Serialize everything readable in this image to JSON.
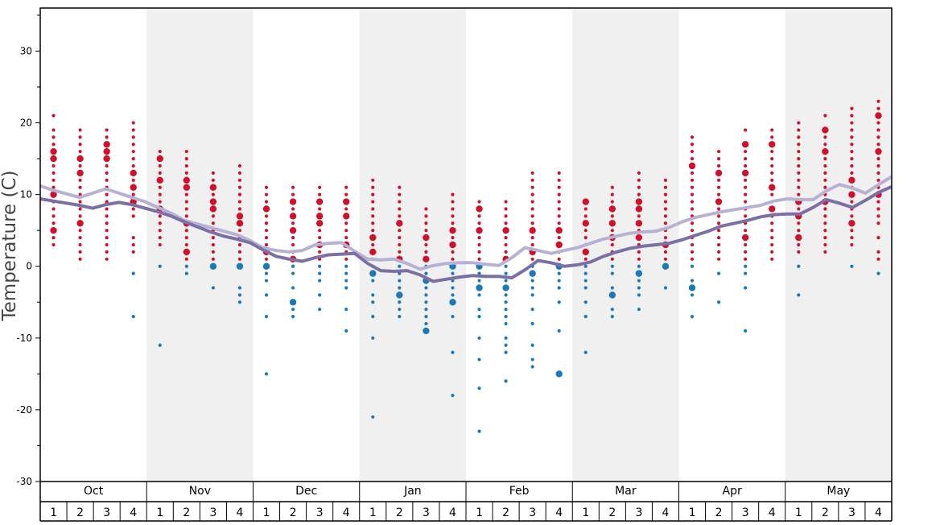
{
  "chart_data": {
    "type": "scatter",
    "ylabel": "Temperature (C)",
    "ylim": [
      -30,
      36
    ],
    "y_ticks": [
      -30,
      -20,
      -10,
      0,
      10,
      20,
      30
    ],
    "months": [
      "Oct",
      "Nov",
      "Dec",
      "Jan",
      "Feb",
      "Mar",
      "Apr",
      "May"
    ],
    "week_labels": [
      "1",
      "2",
      "3",
      "4"
    ],
    "colors": {
      "warm_dot": "#d0112b",
      "cold_dot": "#1a7ab8",
      "max_line": "#b7b1d3",
      "min_line": "#7d6fa5",
      "shaded_band": "#f0f0f0",
      "axis": "#000000"
    },
    "series": [
      {
        "name": "upper",
        "values": [
          11.2,
          10.6,
          10.1,
          9.6,
          10.2,
          10.8,
          10.2,
          9.6,
          9.0,
          8.2,
          7.4,
          6.4,
          5.9,
          5.4,
          4.9,
          4.4,
          3.6,
          2.6,
          2.2,
          2.0,
          2.2,
          3.0,
          3.2,
          3.3,
          2.1,
          1.0,
          0.9,
          1.0,
          0.4,
          -0.4,
          0.1,
          0.4,
          0.5,
          0.5,
          0.3,
          0.1,
          1.2,
          2.6,
          2.2,
          1.8,
          2.2,
          2.6,
          3.2,
          3.8,
          4.2,
          4.6,
          4.8,
          4.9,
          5.4,
          6.2,
          6.8,
          7.2,
          7.6,
          7.9,
          8.2,
          8.5,
          9.1,
          9.4,
          9.3,
          9.3,
          10.5,
          11.4,
          10.9,
          10.2,
          11.4,
          12.5
        ]
      },
      {
        "name": "lower",
        "values": [
          9.4,
          9.1,
          8.8,
          8.5,
          8.1,
          8.6,
          8.9,
          8.6,
          8.1,
          7.6,
          7.0,
          6.2,
          5.5,
          4.8,
          4.2,
          3.8,
          3.3,
          2.3,
          1.4,
          1.0,
          0.7,
          1.2,
          1.6,
          1.7,
          1.8,
          0.4,
          -0.6,
          -0.7,
          -0.6,
          -1.2,
          -2.1,
          -1.8,
          -1.5,
          -1.3,
          -1.4,
          -1.4,
          -1.6,
          -0.5,
          0.8,
          0.5,
          0.0,
          0.2,
          0.6,
          1.4,
          2.0,
          2.5,
          2.8,
          3.0,
          3.2,
          3.7,
          4.3,
          4.9,
          5.6,
          6.0,
          6.4,
          6.9,
          7.2,
          7.3,
          7.3,
          8.2,
          9.3,
          8.8,
          8.2,
          9.2,
          10.3,
          11.1
        ]
      }
    ],
    "dot_columns": [
      {
        "temps": [
          21,
          19,
          18,
          17,
          16,
          15,
          14,
          13,
          12,
          11,
          10,
          9,
          8,
          7,
          6,
          5,
          4,
          3
        ],
        "big": [
          15,
          16,
          10,
          5
        ]
      },
      {
        "temps": [
          19,
          18,
          17,
          16,
          15,
          14,
          13,
          12,
          11,
          10,
          9,
          8,
          7,
          6,
          5,
          4,
          3,
          2,
          1
        ],
        "big": [
          15,
          13,
          6
        ]
      },
      {
        "temps": [
          19,
          18,
          17,
          16,
          15,
          14,
          13,
          12,
          11,
          10,
          9,
          8,
          7,
          6,
          5,
          4,
          3,
          2,
          1
        ],
        "big": [
          17,
          15,
          16
        ]
      },
      {
        "temps": [
          20,
          19,
          18,
          17,
          16,
          15,
          14,
          13,
          12,
          11,
          10,
          9,
          8,
          7,
          4,
          3,
          2,
          -1,
          -7
        ],
        "big": [
          13,
          11,
          9
        ]
      },
      {
        "temps": [
          16,
          15,
          14,
          13,
          12,
          11,
          10,
          9,
          8,
          7,
          6,
          5,
          4,
          3,
          0,
          -11
        ],
        "big": [
          15,
          12,
          8
        ]
      },
      {
        "temps": [
          16,
          15,
          14,
          13,
          12,
          11,
          10,
          9,
          8,
          7,
          6,
          5,
          4,
          3,
          2,
          1,
          0,
          -1
        ],
        "big": [
          12,
          11,
          6,
          2
        ]
      },
      {
        "temps": [
          13,
          12,
          11,
          10,
          9,
          8,
          7,
          6,
          5,
          4,
          3,
          2,
          1,
          0,
          -3
        ],
        "big": [
          11,
          9,
          8,
          0
        ]
      },
      {
        "temps": [
          14,
          13,
          12,
          11,
          10,
          9,
          8,
          7,
          6,
          5,
          4,
          3,
          2,
          1,
          0,
          -3,
          -4,
          -5
        ],
        "big": [
          7,
          6,
          0
        ]
      },
      {
        "temps": [
          11,
          10,
          9,
          8,
          7,
          6,
          5,
          4,
          3,
          2,
          1,
          0,
          -1,
          -2,
          -4,
          -7,
          -15
        ],
        "big": [
          8,
          2,
          0
        ]
      },
      {
        "temps": [
          11,
          10,
          9,
          8,
          7,
          6,
          5,
          4,
          3,
          2,
          1,
          0,
          -1,
          -3,
          -5,
          -6,
          -7
        ],
        "big": [
          9,
          7,
          5,
          1,
          -5
        ]
      },
      {
        "temps": [
          11,
          10,
          9,
          8,
          7,
          6,
          5,
          4,
          3,
          2,
          1,
          0,
          -1,
          -2,
          -4,
          -6
        ],
        "big": [
          9,
          7,
          6,
          3
        ]
      },
      {
        "temps": [
          11,
          10,
          9,
          8,
          7,
          6,
          5,
          4,
          3,
          2,
          1,
          0,
          -1,
          -2,
          -3,
          -6,
          -9
        ],
        "big": [
          9,
          7,
          3
        ]
      },
      {
        "temps": [
          12,
          11,
          10,
          9,
          8,
          7,
          6,
          5,
          4,
          3,
          2,
          1,
          0,
          -1,
          -2,
          -4,
          -5,
          -7,
          -10,
          -21
        ],
        "big": [
          4,
          2,
          -1
        ]
      },
      {
        "temps": [
          11,
          10,
          9,
          8,
          7,
          6,
          5,
          4,
          3,
          2,
          1,
          0,
          -1,
          -2,
          -3,
          -4,
          -5,
          -6,
          -7
        ],
        "big": [
          6,
          1,
          -4
        ]
      },
      {
        "temps": [
          8,
          7,
          6,
          5,
          4,
          3,
          2,
          1,
          0,
          -1,
          -2,
          -3,
          -4,
          -5,
          -6,
          -7,
          -8,
          -9
        ],
        "big": [
          4,
          1,
          -2,
          -9
        ]
      },
      {
        "temps": [
          10,
          9,
          8,
          7,
          6,
          5,
          4,
          3,
          2,
          1,
          0,
          -1,
          -2,
          -3,
          -4,
          -5,
          -7,
          -12,
          -18
        ],
        "big": [
          5,
          3,
          0,
          -5
        ]
      },
      {
        "temps": [
          9,
          8,
          7,
          6,
          5,
          4,
          3,
          2,
          1,
          0,
          -1,
          -2,
          -3,
          -4,
          -6,
          -7,
          -10,
          -13,
          -17,
          -23
        ],
        "big": [
          8,
          5,
          0,
          -3
        ]
      },
      {
        "temps": [
          9,
          8,
          7,
          6,
          5,
          4,
          3,
          2,
          1,
          0,
          -1,
          -2,
          -3,
          -4,
          -5,
          -6,
          -7,
          -8,
          -10,
          -11,
          -12,
          -16
        ],
        "big": [
          5,
          1,
          -3
        ]
      },
      {
        "temps": [
          13,
          12,
          11,
          10,
          9,
          8,
          7,
          6,
          5,
          4,
          3,
          2,
          1,
          0,
          -1,
          -2,
          -3,
          -4,
          -6,
          -8,
          -11,
          -13,
          -14
        ],
        "big": [
          5,
          2,
          -1
        ]
      },
      {
        "temps": [
          13,
          12,
          11,
          10,
          9,
          8,
          7,
          6,
          5,
          4,
          3,
          2,
          1,
          0,
          -1,
          -2,
          -3,
          -5,
          -9,
          -15
        ],
        "big": [
          5,
          3,
          0,
          -15
        ]
      },
      {
        "temps": [
          9,
          8,
          7,
          6,
          5,
          4,
          3,
          2,
          1,
          0,
          -1,
          -2,
          -3,
          -5,
          -7,
          -12
        ],
        "big": [
          9,
          6,
          2
        ]
      },
      {
        "temps": [
          11,
          10,
          9,
          8,
          7,
          6,
          5,
          4,
          3,
          2,
          1,
          0,
          -1,
          -3,
          -4,
          -6,
          -7
        ],
        "big": [
          8,
          6,
          4,
          -4
        ]
      },
      {
        "temps": [
          13,
          12,
          11,
          10,
          9,
          8,
          7,
          6,
          5,
          4,
          3,
          2,
          1,
          0,
          -1,
          -2,
          -3,
          -4,
          -6
        ],
        "big": [
          9,
          8,
          6,
          4,
          -1
        ]
      },
      {
        "temps": [
          12,
          11,
          10,
          9,
          8,
          7,
          6,
          5,
          4,
          3,
          2,
          1,
          0,
          -3
        ],
        "big": [
          3,
          0
        ]
      },
      {
        "temps": [
          18,
          17,
          16,
          15,
          14,
          13,
          12,
          11,
          10,
          9,
          8,
          7,
          6,
          5,
          4,
          3,
          2,
          1,
          0,
          -2,
          -3,
          -4,
          -7
        ],
        "big": [
          -3,
          14
        ]
      },
      {
        "temps": [
          16,
          15,
          14,
          13,
          12,
          11,
          10,
          9,
          8,
          7,
          6,
          5,
          4,
          3,
          2,
          1,
          -1,
          -5
        ],
        "big": [
          13,
          9
        ]
      },
      {
        "temps": [
          19,
          17,
          16,
          15,
          14,
          13,
          12,
          11,
          10,
          9,
          8,
          7,
          6,
          5,
          4,
          3,
          2,
          1,
          0,
          -1,
          -3,
          -9
        ],
        "big": [
          17,
          13,
          4
        ]
      },
      {
        "temps": [
          19,
          18,
          17,
          16,
          15,
          14,
          13,
          12,
          11,
          10,
          9,
          8,
          7,
          6,
          5,
          4,
          3,
          2,
          1
        ],
        "big": [
          17,
          11,
          8
        ]
      },
      {
        "temps": [
          20,
          19,
          18,
          17,
          16,
          15,
          14,
          13,
          12,
          11,
          10,
          9,
          8,
          7,
          6,
          5,
          4,
          3,
          2,
          0,
          -4
        ],
        "big": [
          9,
          7,
          4
        ]
      },
      {
        "temps": [
          21,
          19,
          18,
          17,
          16,
          15,
          14,
          13,
          12,
          11,
          10,
          9,
          8,
          7,
          6,
          5,
          4,
          3,
          2
        ],
        "big": [
          19,
          16,
          9
        ]
      },
      {
        "temps": [
          22,
          21,
          20,
          19,
          18,
          17,
          16,
          15,
          14,
          13,
          12,
          11,
          10,
          9,
          8,
          7,
          6,
          5,
          4,
          3,
          0
        ],
        "big": [
          12,
          10,
          6
        ]
      },
      {
        "temps": [
          23,
          22,
          21,
          20,
          19,
          18,
          17,
          16,
          15,
          14,
          13,
          12,
          11,
          10,
          9,
          8,
          7,
          6,
          4,
          2,
          1,
          -1
        ],
        "big": [
          21,
          16,
          10
        ]
      }
    ]
  }
}
